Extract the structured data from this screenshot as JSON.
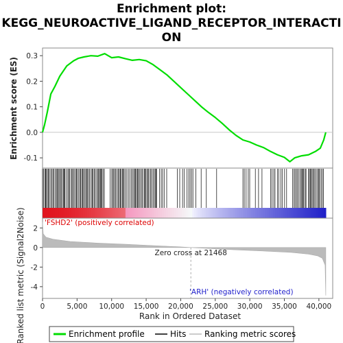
{
  "chart_data": {
    "type": "line",
    "title_line1": "Enrichment plot:",
    "title_line2": "KEGG_NEUROACTIVE_LIGAND_RECEPTOR_INTERACTI",
    "title_line3": "ON",
    "es_ylabel": "Enrichment score (ES)",
    "metric_ylabel_line1": "Ranked list metric (Signal2Noise)",
    "xlabel": "Rank in Ordered Dataset",
    "x_ticks": [
      0,
      5000,
      10000,
      15000,
      20000,
      25000,
      30000,
      35000,
      40000
    ],
    "x_tick_labels": [
      "0",
      "5,000",
      "10,000",
      "15,000",
      "20,000",
      "25,000",
      "30,000",
      "35,000",
      "40,000"
    ],
    "xlim": [
      0,
      42000
    ],
    "es_yticks": [
      -0.1,
      0.0,
      0.1,
      0.2,
      0.3
    ],
    "es_ytick_labels": [
      "-0.1",
      "0.0",
      "0.1",
      "0.2",
      "0.3"
    ],
    "es_ylim": [
      -0.14,
      0.33
    ],
    "metric_yticks": [
      2,
      0,
      -2,
      -4
    ],
    "metric_ytick_labels": [
      "2",
      "0",
      "-2",
      "-4"
    ],
    "metric_ylim": [
      -5.2,
      3.0
    ],
    "n_genes": 41000,
    "zero_cross_rank": 21468,
    "zero_cross_label": "Zero cross at 21468",
    "pos_label": "'FSHD2' (positively correlated)",
    "neg_label": "'ARH' (negatively correlated)",
    "es_profile": {
      "x": [
        0,
        300,
        700,
        1200,
        1800,
        2500,
        3500,
        4500,
        5200,
        6000,
        7000,
        8000,
        9000,
        10000,
        11000,
        12000,
        13000,
        14000,
        15000,
        16000,
        17000,
        18000,
        19000,
        20000,
        21000,
        22000,
        23000,
        24000,
        25000,
        26000,
        27000,
        28000,
        29000,
        30000,
        31000,
        32000,
        33000,
        34000,
        35000,
        35800,
        36500,
        37500,
        38500,
        39500,
        40200,
        40700,
        41000
      ],
      "y": [
        0.0,
        0.03,
        0.08,
        0.15,
        0.18,
        0.22,
        0.26,
        0.28,
        0.29,
        0.295,
        0.3,
        0.298,
        0.308,
        0.292,
        0.295,
        0.288,
        0.282,
        0.285,
        0.28,
        0.265,
        0.245,
        0.225,
        0.2,
        0.175,
        0.15,
        0.125,
        0.1,
        0.078,
        0.058,
        0.035,
        0.01,
        -0.012,
        -0.03,
        -0.038,
        -0.05,
        -0.06,
        -0.075,
        -0.088,
        -0.098,
        -0.115,
        -0.1,
        -0.092,
        -0.088,
        -0.075,
        -0.062,
        -0.03,
        0.0
      ]
    },
    "hit_bands": [
      [
        0,
        9000,
        "dense"
      ],
      [
        9800,
        16500,
        "dense"
      ],
      [
        16500,
        18300,
        "medium"
      ],
      [
        19500,
        21800,
        "medium"
      ],
      [
        22200,
        24000,
        "sparse"
      ],
      [
        25200,
        25700,
        "sparse"
      ],
      [
        29000,
        30200,
        "medium"
      ],
      [
        30800,
        32000,
        "sparse"
      ],
      [
        33000,
        35500,
        "medium"
      ],
      [
        36200,
        38200,
        "dense"
      ],
      [
        38500,
        40800,
        "dense"
      ]
    ],
    "metric_profile": {
      "x": [
        0,
        100,
        500,
        1500,
        4000,
        8000,
        12000,
        16000,
        20000,
        21468,
        24000,
        28000,
        32000,
        36000,
        38500,
        39800,
        40500,
        40900,
        41000
      ],
      "y": [
        2.6,
        1.4,
        1.05,
        0.85,
        0.62,
        0.45,
        0.33,
        0.2,
        0.06,
        0.0,
        -0.1,
        -0.24,
        -0.36,
        -0.5,
        -0.68,
        -0.85,
        -1.1,
        -1.8,
        -4.9
      ]
    },
    "legend": [
      {
        "label": "Enrichment profile",
        "color": "#00dd00"
      },
      {
        "label": "Hits",
        "color": "#000000"
      },
      {
        "label": "Ranking metric scores",
        "color": "#bbbbbb"
      }
    ],
    "colors": {
      "es_line": "#00dd00",
      "hits": "#000000",
      "metric_fill": "#bbbbbb",
      "pos_label": "#dd0000",
      "neg_label": "#2222cc",
      "zero_line": "#c8c8c8"
    }
  }
}
